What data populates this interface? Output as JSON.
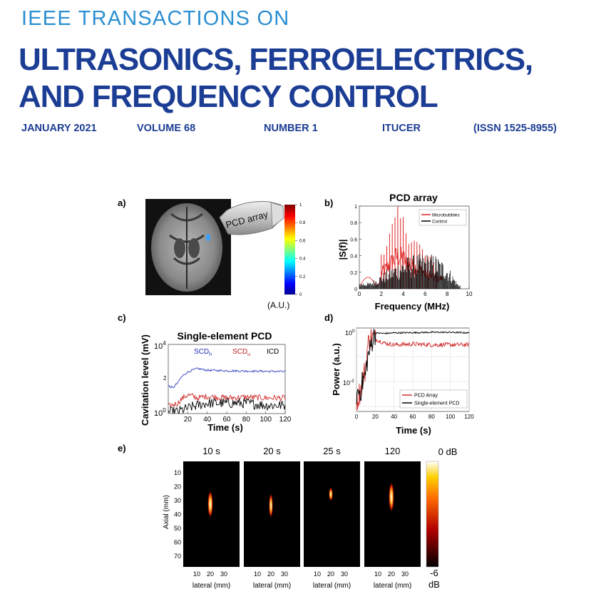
{
  "header": {
    "journal_prefix": "IEEE TRANSACTIONS ON",
    "title_line1": "ULTRASONICS, FERROELECTRICS,",
    "title_line2": "AND FREQUENCY CONTROL",
    "date": "JANUARY 2021",
    "volume": "VOLUME 68",
    "number": "NUMBER 1",
    "code": "ITUCER",
    "issn": "(ISSN 1525-8955)"
  },
  "figure": {
    "panel_a": {
      "label": "a)",
      "probe_label": "PCD array",
      "colorbar_ticks": [
        "1",
        "0.8",
        "0.6",
        "0.4",
        "0.2",
        "0"
      ],
      "colorbar_unit": "(A.U.)"
    },
    "panel_b": {
      "label": "b)",
      "title": "PCD array",
      "xlabel": "Frequency (MHz)",
      "ylabel": "|S(f)|",
      "xticks": [
        "0",
        "2",
        "4",
        "6",
        "8",
        "10"
      ],
      "yticks": [
        "0",
        "0.2",
        "0.4",
        "0.6",
        "0.8",
        "1"
      ],
      "legend": [
        "Microbubbles",
        "Control"
      ]
    },
    "panel_c": {
      "label": "c)",
      "title": "Single-element PCD",
      "xlabel": "Time (s)",
      "ylabel": "Cavitation level (mV)",
      "xticks": [
        "20",
        "40",
        "60",
        "80",
        "100",
        "120"
      ],
      "y_top_base": "10",
      "y_top_exp": "4",
      "y_bot_base": "10",
      "y_bot_exp": "0",
      "y_mid_exp": "2",
      "legend_scdh": "SCD",
      "legend_scdh_sub": "h",
      "legend_scdu": "SCD",
      "legend_scdu_sub": "u",
      "legend_icd": "ICD"
    },
    "panel_d": {
      "label": "d)",
      "xlabel": "Time (s)",
      "ylabel": "Power (a.u.)",
      "xticks": [
        "0",
        "20",
        "40",
        "60",
        "80",
        "100",
        "120"
      ],
      "y_top_base": "10",
      "y_top_exp": "0",
      "y_mid_base": "10",
      "y_mid_exp": "-2",
      "legend": [
        "PCD Array",
        "Single-element PCD"
      ]
    },
    "panel_e": {
      "label": "e)",
      "image_titles": [
        "10 s",
        "20 s",
        "25 s",
        "120"
      ],
      "ylabel": "Axial (mm)",
      "yticks": [
        "10",
        "20",
        "30",
        "40",
        "50",
        "60",
        "70"
      ],
      "xticks": [
        "10",
        "20",
        "30"
      ],
      "xlabel": "lateral (mm)",
      "colorbar_top": "0 dB",
      "colorbar_bottom_value": "-6",
      "colorbar_bottom_unit": "dB"
    }
  },
  "chart_data": [
    {
      "type": "line",
      "title": "PCD array",
      "xlabel": "Frequency (MHz)",
      "ylabel": "|S(f)|",
      "xlim": [
        0,
        10
      ],
      "ylim": [
        0,
        1
      ],
      "legend_position": "top-right",
      "series": [
        {
          "name": "Microbubbles",
          "color": "#e02020",
          "x": [
            2,
            2.5,
            3,
            3.5,
            4,
            4.5,
            5,
            5.5,
            6,
            6.5,
            7
          ],
          "values": [
            0.48,
            0.62,
            0.82,
            1.0,
            0.9,
            0.72,
            0.66,
            0.58,
            0.46,
            0.4,
            0.3
          ]
        },
        {
          "name": "Control",
          "color": "#000000",
          "x": [
            1,
            2,
            3,
            4,
            5,
            6,
            7,
            8,
            9
          ],
          "values": [
            0.08,
            0.18,
            0.28,
            0.38,
            0.42,
            0.44,
            0.42,
            0.3,
            0.06
          ]
        }
      ]
    },
    {
      "type": "line",
      "title": "Single-element PCD",
      "xlabel": "Time (s)",
      "ylabel": "Cavitation level (mV)",
      "xlim": [
        0,
        120
      ],
      "y_scale": "log",
      "ylim": [
        1,
        10000
      ],
      "legend_position": "top",
      "series": [
        {
          "name": "SCDh",
          "color": "#3040c0",
          "x": [
            0,
            5,
            10,
            20,
            30,
            40,
            60,
            80,
            100,
            120
          ],
          "values": [
            40,
            30,
            60,
            250,
            400,
            320,
            300,
            290,
            280,
            270
          ]
        },
        {
          "name": "SCDu",
          "color": "#d03030",
          "x": [
            0,
            10,
            20,
            30,
            40,
            60,
            80,
            100,
            120
          ],
          "values": [
            2.5,
            4,
            12,
            8,
            10,
            8,
            9,
            8,
            8
          ]
        },
        {
          "name": "ICD",
          "color": "#000000",
          "x": [
            0,
            10,
            20,
            30,
            40,
            60,
            80,
            100,
            120
          ],
          "values": [
            1.2,
            1.3,
            2,
            3,
            4,
            4,
            4,
            3,
            3
          ]
        }
      ]
    },
    {
      "type": "line",
      "xlabel": "Time (s)",
      "ylabel": "Power (a.u.)",
      "xlim": [
        0,
        120
      ],
      "y_scale": "log",
      "grid": true,
      "legend_position": "bottom-right",
      "series": [
        {
          "name": "PCD Array",
          "color": "#d03030",
          "x": [
            0,
            5,
            10,
            15,
            20,
            30,
            40,
            60,
            80,
            100,
            120
          ],
          "values": [
            0.001,
            0.005,
            0.03,
            0.6,
            0.5,
            0.35,
            0.3,
            0.32,
            0.3,
            0.3,
            0.3
          ]
        },
        {
          "name": "Single-element PCD",
          "color": "#000000",
          "x": [
            0,
            5,
            10,
            15,
            20,
            30,
            40,
            60,
            80,
            100,
            120
          ],
          "values": [
            0.003,
            0.005,
            0.02,
            0.2,
            0.9,
            0.85,
            0.9,
            0.92,
            0.95,
            0.95,
            0.9
          ]
        }
      ]
    }
  ]
}
